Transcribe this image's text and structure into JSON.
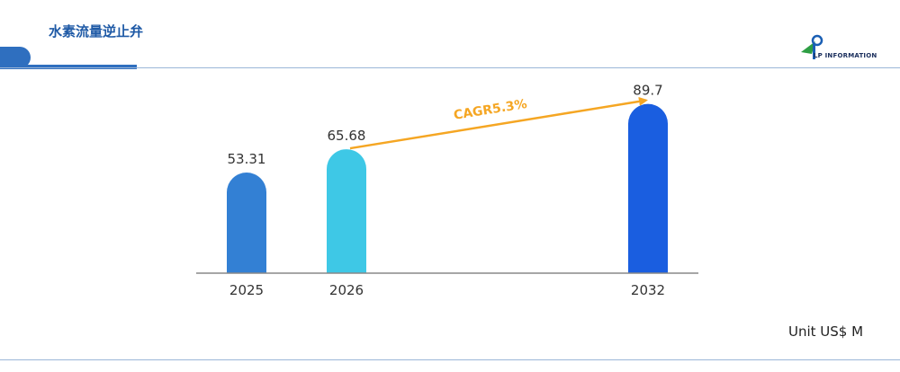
{
  "header": {
    "title": "水素流量逆止弁"
  },
  "logo": {
    "text": "LP INFORMATION",
    "colors": {
      "blue": "#1a5fb4",
      "green": "#2e9e44"
    }
  },
  "unit_label": "Unit US$ M",
  "chart_data": {
    "type": "bar",
    "categories": [
      "2025",
      "2026",
      "2032"
    ],
    "values": [
      53.31,
      65.68,
      89.7
    ],
    "value_labels": [
      "53.31",
      "65.68",
      "89.7"
    ],
    "colors": [
      "#3380d4",
      "#3ec8e6",
      "#1a5ee0"
    ],
    "ylim": [
      0,
      100
    ],
    "grid": false,
    "annotation": {
      "text": "CAGR5.3%",
      "from": "2026",
      "to": "2032",
      "color": "#f5a623"
    }
  }
}
